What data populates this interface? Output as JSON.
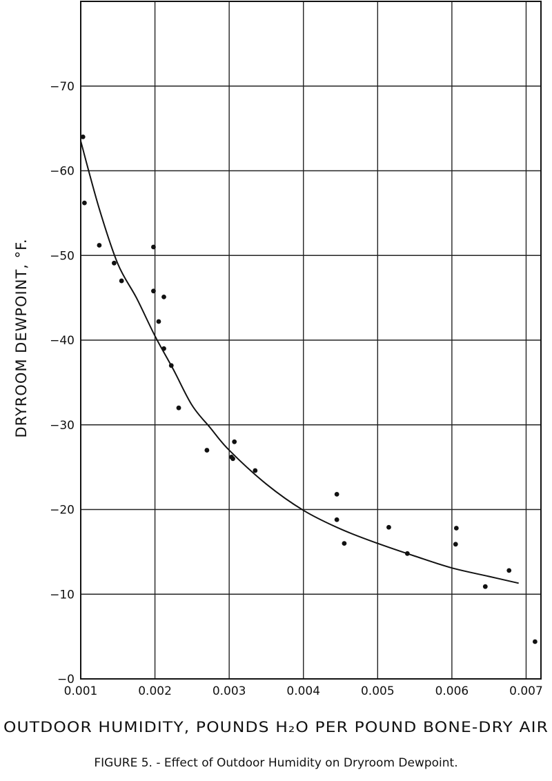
{
  "chart_data": {
    "type": "scatter",
    "title": "",
    "caption": "FIGURE 5. - Effect of Outdoor Humidity on Dryroom Dewpoint.",
    "xlabel": "OUTDOOR HUMIDITY, POUNDS H₂O PER POUND BONE-DRY AIR",
    "ylabel": "DRYROOM DEWPOINT, °F.",
    "xlim": [
      0.001,
      0.0072
    ],
    "ylim": [
      0,
      80
    ],
    "x_ticks": [
      {
        "value": 0.001,
        "label": "0.001"
      },
      {
        "value": 0.002,
        "label": "0.002"
      },
      {
        "value": 0.003,
        "label": "0.003"
      },
      {
        "value": 0.004,
        "label": "0.004"
      },
      {
        "value": 0.005,
        "label": "0.005"
      },
      {
        "value": 0.006,
        "label": "0.006"
      },
      {
        "value": 0.007,
        "label": "0.007"
      }
    ],
    "y_ticks": [
      {
        "value": 0,
        "label": "−0"
      },
      {
        "value": 10,
        "label": "−10"
      },
      {
        "value": 20,
        "label": "−20"
      },
      {
        "value": 30,
        "label": "−30"
      },
      {
        "value": 40,
        "label": "−40"
      },
      {
        "value": 50,
        "label": "−50"
      },
      {
        "value": 60,
        "label": "−60"
      },
      {
        "value": 70,
        "label": "−70"
      }
    ],
    "grid": true,
    "series": [
      {
        "kind": "points",
        "color": "#111111",
        "x": [
          0.00103,
          0.00105,
          0.00125,
          0.00145,
          0.00155,
          0.00198,
          0.00198,
          0.00205,
          0.00212,
          0.00212,
          0.00222,
          0.00232,
          0.0027,
          0.00303,
          0.00305,
          0.00307,
          0.00335,
          0.00445,
          0.00445,
          0.00455,
          0.00515,
          0.0054,
          0.00605,
          0.00606,
          0.00645,
          0.00677,
          0.00712
        ],
        "y": [
          64,
          56.2,
          51.2,
          49.1,
          47,
          51,
          45.8,
          42.2,
          45.1,
          39,
          37,
          32,
          27,
          26.2,
          26,
          28,
          24.6,
          21.8,
          18.8,
          16,
          17.9,
          14.8,
          15.9,
          17.8,
          10.9,
          12.8,
          4.4
        ]
      },
      {
        "kind": "fit-curve",
        "color": "#111111",
        "x": [
          0.001,
          0.00125,
          0.0015,
          0.00175,
          0.002,
          0.00225,
          0.0025,
          0.00275,
          0.003,
          0.0035,
          0.004,
          0.0045,
          0.005,
          0.0055,
          0.006,
          0.0065,
          0.0069
        ],
        "y": [
          63.5,
          55.5,
          49,
          45,
          40.5,
          36.5,
          32.3,
          29.6,
          27,
          23,
          19.9,
          17.7,
          16,
          14.5,
          13.1,
          12.1,
          11.3
        ]
      }
    ]
  }
}
